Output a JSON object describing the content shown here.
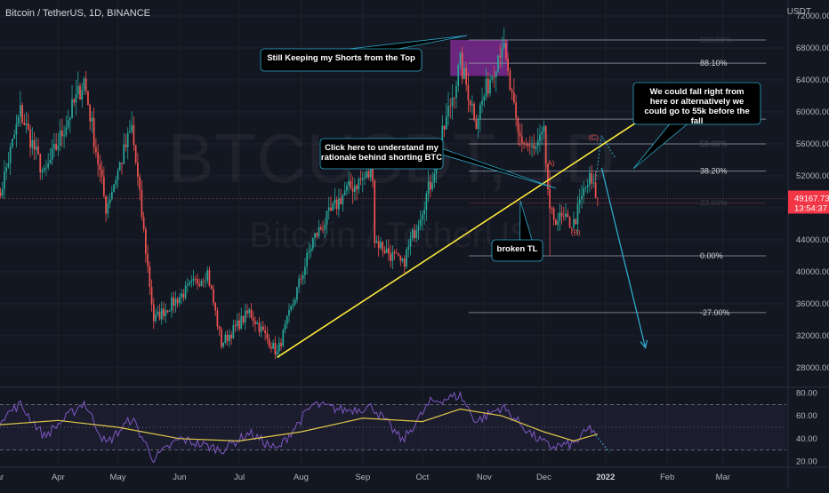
{
  "header": {
    "title": "Bitcoin / TetherUS, 1D, BINANCE",
    "unit": "USDT"
  },
  "watermark": {
    "main": "BTCUSDT, 1D",
    "sub": "Bitcoin / TetherUS"
  },
  "colors": {
    "background": "#131722",
    "up": "#26a69a",
    "down": "#ef5350",
    "trendline": "#ffeb3b",
    "projection": "#2fa8c9",
    "fib": "#9aa0ac",
    "supply_zone": "#7b2a8f",
    "rsi": "#7e57c2",
    "rsi_ma": "#e0c84a",
    "price_label_bg": "#f23645",
    "wave_label": "#ef5350"
  },
  "chart_data": [
    {
      "type": "candlestick",
      "title": "Bitcoin / TetherUS, 1D, BINANCE",
      "ylabel": "USDT",
      "ylim": [
        26000,
        74000
      ],
      "y_ticks": [
        28000,
        32000,
        36000,
        40000,
        44000,
        48000,
        52000,
        56000,
        60000,
        64000,
        68000,
        72000
      ],
      "y_tick_labels": [
        "28000.00",
        "32000.00",
        "36000.00",
        "40000.00",
        "44000.00",
        "48000.00",
        "52000.00",
        "56000.00",
        "60000.00",
        "64000.00",
        "68000.00",
        "72000.00"
      ],
      "xlim": [
        "2021-03-01",
        "2022-03-31"
      ],
      "x_ticks": [
        "2021-03-01",
        "2021-04-01",
        "2021-05-01",
        "2021-06-01",
        "2021-07-01",
        "2021-08-01",
        "2021-09-01",
        "2021-10-01",
        "2021-11-01",
        "2021-12-01",
        "2022-01-01",
        "2022-02-01",
        "2022-03-01"
      ],
      "x_tick_labels": [
        "Mar",
        "Apr",
        "May",
        "Jun",
        "Jul",
        "Aug",
        "Sep",
        "Oct",
        "Nov",
        "Dec",
        "2022",
        "Feb",
        "Mar"
      ],
      "price_path": [
        [
          "2021-03-01",
          48000
        ],
        [
          "2021-03-13",
          60000
        ],
        [
          "2021-03-25",
          52000
        ],
        [
          "2021-04-14",
          64000
        ],
        [
          "2021-04-25",
          48000
        ],
        [
          "2021-05-08",
          58000
        ],
        [
          "2021-05-19",
          34000
        ],
        [
          "2021-05-28",
          36000
        ],
        [
          "2021-06-15",
          40000
        ],
        [
          "2021-06-22",
          31000
        ],
        [
          "2021-07-06",
          35000
        ],
        [
          "2021-07-20",
          29800
        ],
        [
          "2021-08-07",
          44000
        ],
        [
          "2021-08-23",
          50000
        ],
        [
          "2021-09-06",
          52500
        ],
        [
          "2021-09-07",
          44000
        ],
        [
          "2021-09-21",
          40800
        ],
        [
          "2021-10-05",
          51000
        ],
        [
          "2021-10-20",
          66000
        ],
        [
          "2021-10-28",
          59000
        ],
        [
          "2021-11-10",
          68800
        ],
        [
          "2021-11-18",
          57000
        ],
        [
          "2021-11-26",
          55000
        ],
        [
          "2021-12-01",
          57000
        ],
        [
          "2021-12-04",
          47000
        ],
        [
          "2021-12-16",
          46000
        ],
        [
          "2021-12-21",
          50000
        ],
        [
          "2021-12-24",
          51500
        ],
        [
          "2021-12-28",
          49167.73
        ]
      ],
      "last_price": {
        "value": 49167.73,
        "label": "49167.73",
        "countdown": "13:54:37"
      },
      "trendline": {
        "from": [
          "2021-07-20",
          29300
        ],
        "to": [
          "2022-01-16",
          58600
        ],
        "label": "broken TL"
      },
      "supply_zone": {
        "x": [
          "2021-10-15",
          "2021-11-13"
        ],
        "y": [
          64500,
          69000
        ]
      },
      "fib_levels": [
        {
          "label": "100.00%",
          "value": 69000
        },
        {
          "label": "88.10%",
          "value": 66100
        },
        {
          "label": "61.80%",
          "value": 59100
        },
        {
          "label": "50.00%",
          "value": 56000
        },
        {
          "label": "38.20%",
          "value": 52600
        },
        {
          "label": "23.60%",
          "value": 48600
        },
        {
          "label": "0.00%",
          "value": 42000
        },
        {
          "label": "-27.00%",
          "value": 34900
        }
      ],
      "wave_labels": [
        {
          "text": "(A)",
          "x": "2021-12-04",
          "y": 53300
        },
        {
          "text": "(B)",
          "x": "2021-12-17",
          "y": 44600
        },
        {
          "text": "(C)",
          "x": "2021-12-26",
          "y": 56500
        }
      ],
      "projection": [
        [
          "2021-12-30",
          53000
        ],
        [
          "2022-01-21",
          30500
        ]
      ],
      "alt_projection": [
        [
          "2021-12-27",
          51500
        ],
        [
          "2021-12-30",
          57000
        ],
        [
          "2022-01-06",
          54200
        ]
      ],
      "annotations": [
        {
          "text": "Still Keeping my Shorts from the Top"
        },
        {
          "text": "Click here to understand my rationale behind shorting BTC"
        },
        {
          "text": "We could fall right from here or alternatively we could go to 55k before the fall"
        },
        {
          "text": "broken TL"
        }
      ]
    },
    {
      "type": "line",
      "title": "",
      "ylim": [
        18,
        82
      ],
      "y_ticks": [
        20,
        40,
        60,
        80
      ],
      "y_tick_labels": [
        "20.00",
        "40.00",
        "60.00",
        "80.00"
      ],
      "bands": [
        30,
        50,
        70
      ],
      "series": [
        {
          "values": [
            [
              "2021-03-01",
              55
            ],
            [
              "2021-03-13",
              70
            ],
            [
              "2021-03-25",
              42
            ],
            [
              "2021-04-14",
              72
            ],
            [
              "2021-04-25",
              35
            ],
            [
              "2021-05-08",
              58
            ],
            [
              "2021-05-19",
              22
            ],
            [
              "2021-06-01",
              40
            ],
            [
              "2021-06-22",
              30
            ],
            [
              "2021-07-06",
              45
            ],
            [
              "2021-07-20",
              30
            ],
            [
              "2021-08-07",
              70
            ],
            [
              "2021-08-23",
              65
            ],
            [
              "2021-09-06",
              68
            ],
            [
              "2021-09-21",
              38
            ],
            [
              "2021-10-05",
              72
            ],
            [
              "2021-10-20",
              78
            ],
            [
              "2021-10-28",
              55
            ],
            [
              "2021-11-10",
              68
            ],
            [
              "2021-11-26",
              42
            ],
            [
              "2021-12-04",
              33
            ],
            [
              "2021-12-16",
              35
            ],
            [
              "2021-12-24",
              49
            ],
            [
              "2021-12-28",
              44
            ]
          ]
        },
        {
          "values": [
            [
              "2021-03-01",
              52
            ],
            [
              "2021-04-01",
              56
            ],
            [
              "2021-05-01",
              50
            ],
            [
              "2021-06-01",
              40
            ],
            [
              "2021-07-01",
              38
            ],
            [
              "2021-08-01",
              46
            ],
            [
              "2021-09-01",
              58
            ],
            [
              "2021-10-01",
              55
            ],
            [
              "2021-10-20",
              66
            ],
            [
              "2021-11-10",
              60
            ],
            [
              "2021-12-01",
              46
            ],
            [
              "2021-12-16",
              38
            ],
            [
              "2021-12-28",
              44
            ]
          ]
        }
      ],
      "projection": [
        [
          "2021-12-27",
          43
        ],
        [
          "2022-01-03",
          28
        ]
      ]
    }
  ]
}
